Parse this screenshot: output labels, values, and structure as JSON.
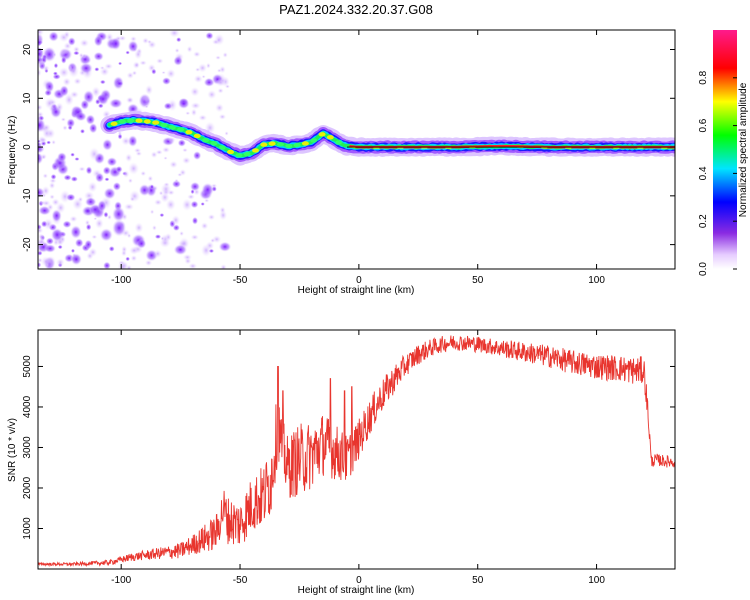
{
  "chart_data": [
    {
      "type": "heatmap",
      "title": "PAZ1.2024.332.20.37.G08",
      "xlabel": "Height of straight line (km)",
      "ylabel": "Frequency (Hz)",
      "xlim": [
        -135,
        133
      ],
      "ylim": [
        -25,
        24
      ],
      "xticks": [
        -100,
        -50,
        0,
        50,
        100
      ],
      "yticks": [
        -20,
        -10,
        0,
        10,
        20
      ],
      "colorbar": {
        "label": "Normalized spectral amplitude",
        "range": [
          0,
          1
        ],
        "ticks": [
          0.0,
          0.2,
          0.4,
          0.6,
          0.8
        ]
      },
      "ridge": {
        "x": [
          -105,
          -100,
          -95,
          -90,
          -85,
          -80,
          -75,
          -70,
          -65,
          -60,
          -55,
          -50,
          -45,
          -40,
          -35,
          -30,
          -25,
          -20,
          -15,
          -12,
          -8,
          -5,
          0,
          20,
          40,
          60,
          80,
          100,
          130
        ],
        "y": [
          4.5,
          5.2,
          5.5,
          5.3,
          5.0,
          4.2,
          3.6,
          2.8,
          1.5,
          0.6,
          -0.8,
          -1.8,
          -1.2,
          0.5,
          0.8,
          0.2,
          0.5,
          1.0,
          2.8,
          2.0,
          0.8,
          0.2,
          0.0,
          0.0,
          0.0,
          0.2,
          0.0,
          0.0,
          0.0
        ]
      },
      "grid": false,
      "legend": "none"
    },
    {
      "type": "line",
      "xlabel": "Height of straight line (km)",
      "ylabel": "SNR (10 * v/v)",
      "xlim": [
        -135,
        133
      ],
      "ylim": [
        0,
        5900
      ],
      "xticks": [
        -100,
        -50,
        0,
        50,
        100
      ],
      "yticks": [
        1000,
        2000,
        3000,
        4000,
        5000
      ],
      "series": [
        {
          "color": "#e8352e",
          "x": [
            -135,
            -120,
            -105,
            -95,
            -85,
            -75,
            -70,
            -65,
            -60,
            -57,
            -55,
            -50,
            -45,
            -40,
            -37,
            -34,
            -33,
            -30,
            -25,
            -20,
            -15,
            -10,
            -5,
            0,
            5,
            10,
            15,
            20,
            25,
            30,
            35,
            40,
            45,
            50,
            55,
            60,
            65,
            70,
            80,
            90,
            100,
            110,
            115,
            118,
            120,
            122,
            123,
            125,
            130,
            133
          ],
          "y": [
            120,
            120,
            160,
            300,
            380,
            450,
            600,
            750,
            900,
            1500,
            1200,
            1100,
            1600,
            1800,
            2200,
            3600,
            3200,
            2500,
            2700,
            2800,
            3100,
            2900,
            2700,
            3200,
            3800,
            4300,
            4700,
            5050,
            5300,
            5450,
            5550,
            5600,
            5580,
            5550,
            5500,
            5450,
            5400,
            5350,
            5250,
            5100,
            5000,
            4950,
            4900,
            4900,
            4900,
            3600,
            2650,
            2700,
            2650,
            2650
          ],
          "noise": [
            30,
            40,
            60,
            100,
            140,
            200,
            250,
            350,
            450,
            550,
            600,
            600,
            700,
            800,
            900,
            900,
            700,
            800,
            900,
            850,
            800,
            700,
            600,
            500,
            450,
            400,
            350,
            280,
            250,
            220,
            200,
            200,
            200,
            200,
            200,
            220,
            240,
            250,
            280,
            300,
            320,
            330,
            340,
            350,
            350,
            300,
            150,
            150,
            150,
            150
          ],
          "spikes": [
            [
              -34,
              5000
            ],
            [
              -32,
              4400
            ],
            [
              -12,
              4700
            ],
            [
              -6,
              4400
            ],
            [
              -3,
              4500
            ]
          ]
        }
      ],
      "grid": false,
      "legend": "none"
    }
  ]
}
